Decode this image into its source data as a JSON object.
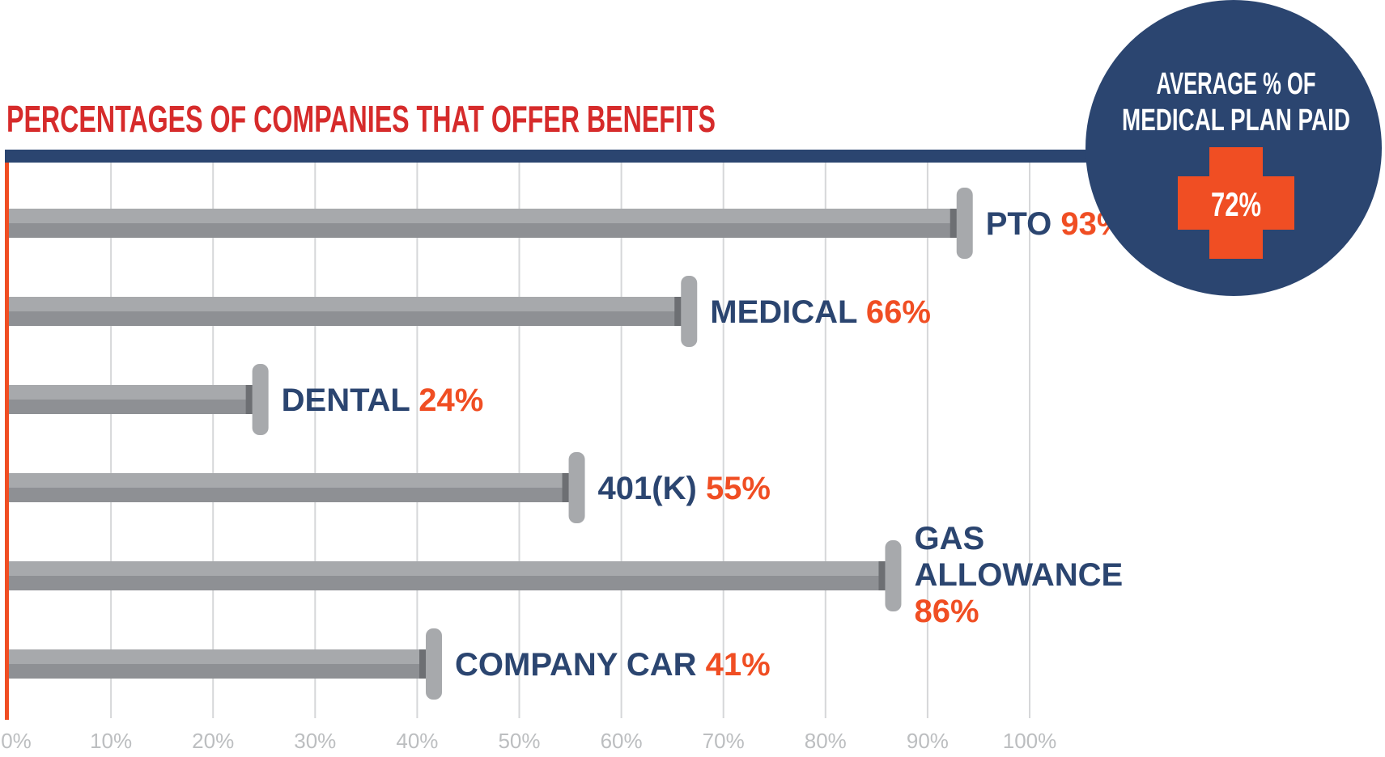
{
  "title": "PERCENTAGES OF COMPANIES THAT OFFER BENEFITS",
  "badge": {
    "line1": "AVERAGE % OF",
    "line2": "MEDICAL PLAN PAID",
    "value": "72%"
  },
  "colors": {
    "title": "#d62b2b",
    "navy": "#2b4570",
    "accent": "#f04e23",
    "bar": "#a7a9ac",
    "bar_dark": "#8e9094",
    "grid": "#d6d7d9",
    "tick": "#bcbec0"
  },
  "chart_data": {
    "type": "bar",
    "orientation": "horizontal",
    "categories": [
      "PTO",
      "MEDICAL",
      "DENTAL",
      "401(K)",
      "GAS ALLOWANCE",
      "COMPANY CAR"
    ],
    "values": [
      93,
      66,
      24,
      55,
      86,
      41
    ],
    "value_labels": [
      "93%",
      "66%",
      "24%",
      "55%",
      "86%",
      "41%"
    ],
    "xlim": [
      0,
      100
    ],
    "x_ticks": [
      "0%",
      "10%",
      "20%",
      "30%",
      "40%",
      "50%",
      "60%",
      "70%",
      "80%",
      "90%",
      "100%"
    ],
    "grid": true,
    "title": "PERCENTAGES OF COMPANIES THAT OFFER BENEFITS",
    "xlabel": "",
    "ylabel": ""
  }
}
